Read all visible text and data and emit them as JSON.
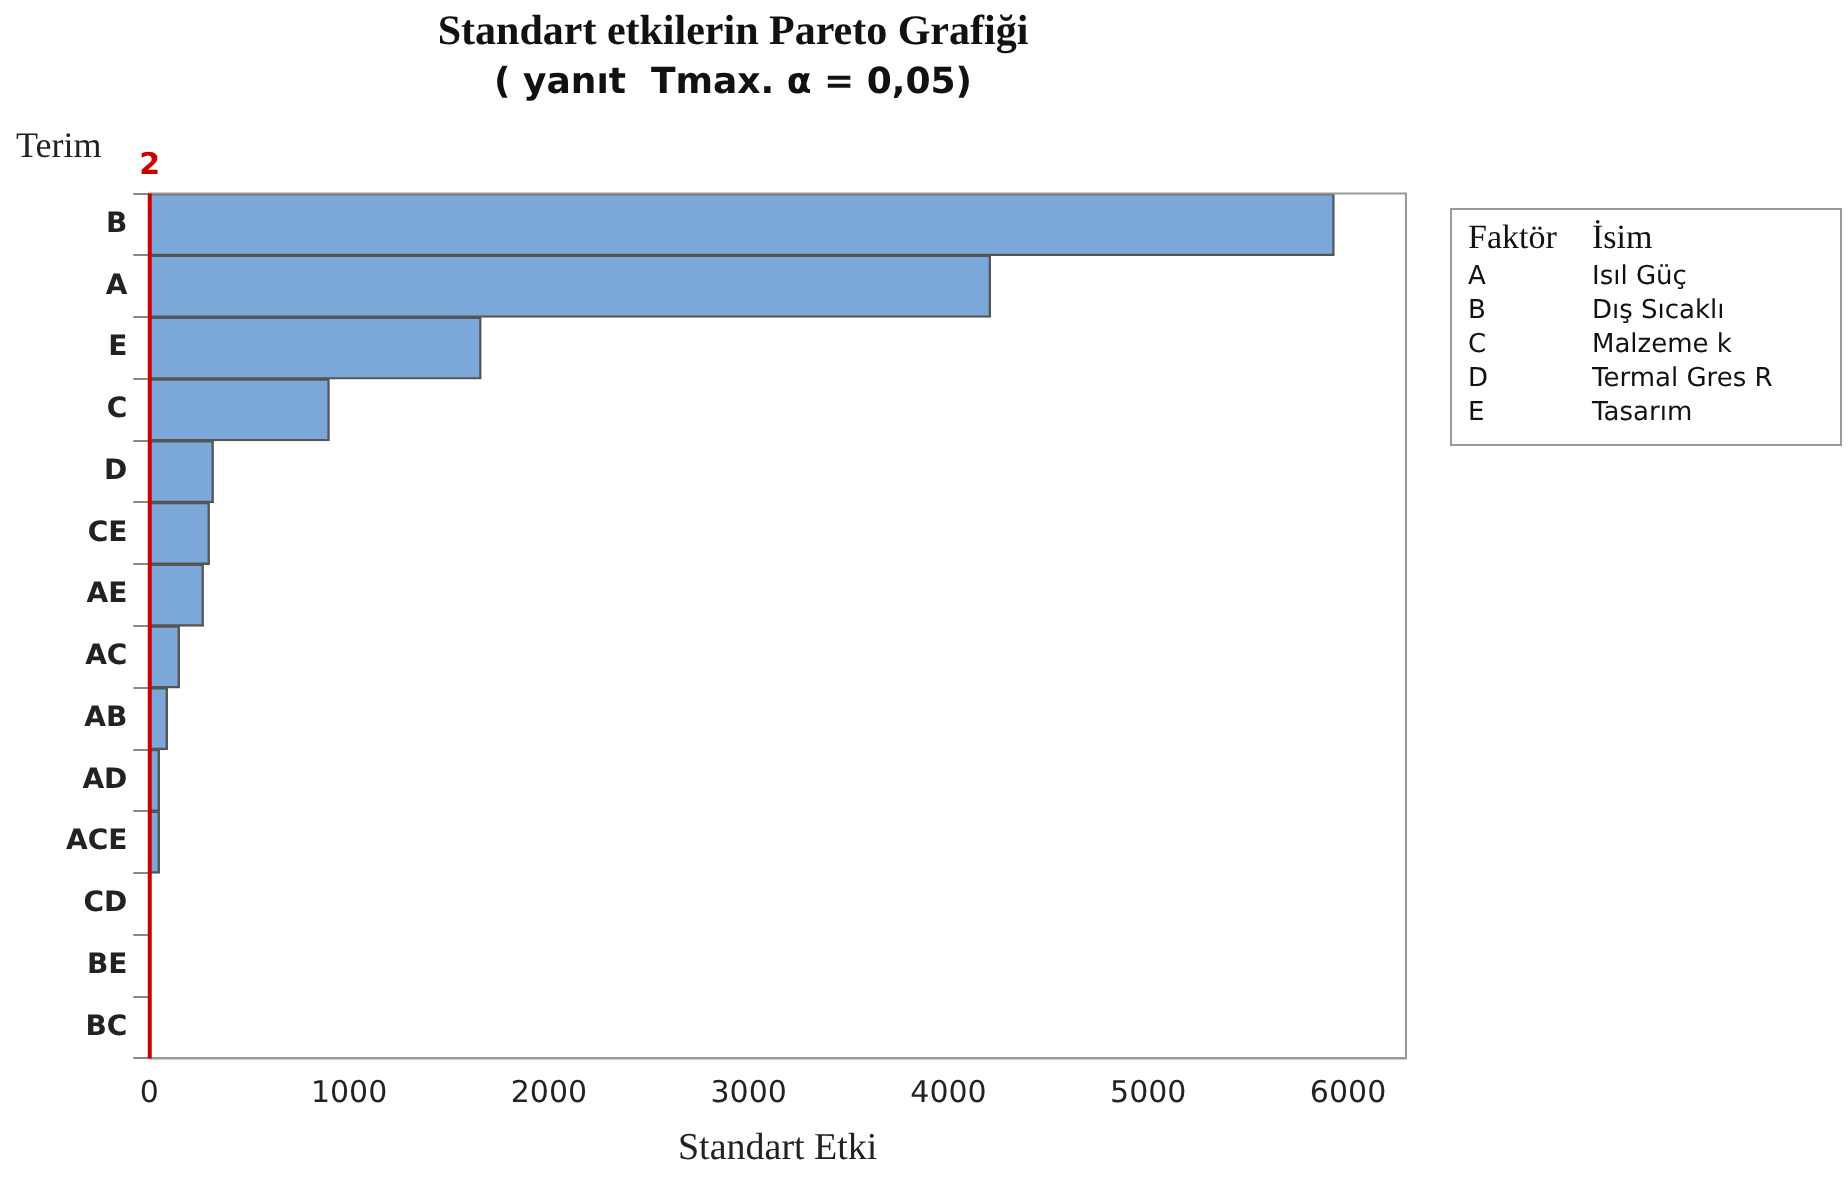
{
  "chart_data": {
    "type": "bar",
    "orientation": "horizontal",
    "title": "Standart etkilerin Pareto Grafiği",
    "subtitle": "( yanıt  Tmax. α = 0,05)",
    "xlabel": "Standart Etki",
    "ylabel": "Terim",
    "categories": [
      "B",
      "A",
      "E",
      "C",
      "D",
      "CE",
      "AE",
      "AC",
      "AB",
      "AD",
      "ACE",
      "CD",
      "BE",
      "BC"
    ],
    "values": [
      5930,
      4210,
      1660,
      900,
      320,
      300,
      270,
      150,
      90,
      50,
      50,
      null,
      null,
      null
    ],
    "color": "#7ba7d9",
    "xlim": [
      0,
      6290
    ],
    "xticks": [
      0,
      1000,
      2000,
      3000,
      4000,
      5000,
      6000
    ],
    "ref_lines": [
      {
        "axis": "x",
        "value": 2,
        "label": "2",
        "color": "#cc0000"
      }
    ],
    "annotations": [
      "Faktör",
      "İsim",
      "A",
      "Isıl Güç",
      "B",
      "Dış Sıcaklı",
      "C",
      "Malzeme k",
      "D",
      "Termal Gres R",
      "E",
      "Tasarım"
    ],
    "grid": false,
    "legend": false
  }
}
